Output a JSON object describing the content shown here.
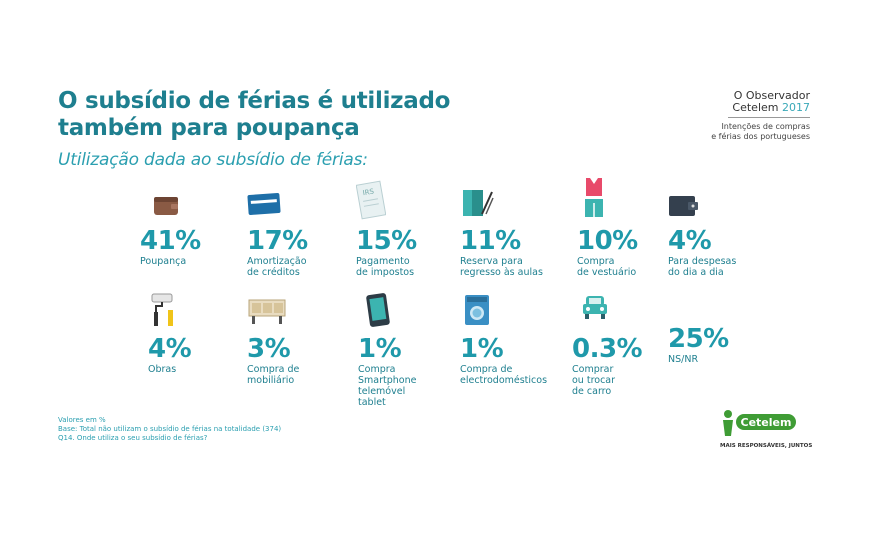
{
  "title_line1": "O subsídio de férias é utilizado",
  "title_line2": "também para poupança",
  "subtitle": "Utilização dada ao subsídio de férias:",
  "brand": {
    "line1": "O Observador",
    "line2": "Cetelem",
    "year": "2017",
    "sub1": "Intenções de compras",
    "sub2": "e férias dos portugueses"
  },
  "notes": {
    "n1": "Valores em %",
    "n2": "Base: Total não utilizam o subsídio de férias na totalidade (374)",
    "n3": "Q14. Onde utiliza o seu subsídio de férias?"
  },
  "logo": {
    "name": "Cetelem",
    "tagline": "MAIS RESPONSÁVEIS, JUNTOS"
  },
  "colors": {
    "accent": "#1f99aa",
    "title": "#1e7f8f",
    "logo_green": "#3f9c35"
  },
  "chart_data": {
    "type": "table",
    "title": "O subsídio de férias é utilizado também para poupança",
    "subtitle": "Utilização dada ao subsídio de férias:",
    "items": [
      {
        "value": "41%",
        "label": "Poupança",
        "icon": "wallet-icon"
      },
      {
        "value": "17%",
        "label": "Amortização\nde créditos",
        "icon": "credit-card-icon"
      },
      {
        "value": "15%",
        "label": "Pagamento\nde impostos",
        "icon": "tax-document-icon"
      },
      {
        "value": "11%",
        "label": "Reserva para\nregresso às aulas",
        "icon": "school-book-icon"
      },
      {
        "value": "10%",
        "label": "Compra\nde vestuário",
        "icon": "clothing-icon"
      },
      {
        "value": "4%",
        "label": "Para despesas\ndo dia a dia",
        "icon": "purse-icon"
      },
      {
        "value": "4%",
        "label": "Obras",
        "icon": "paint-roller-icon"
      },
      {
        "value": "3%",
        "label": "Compra de\nmobiliário",
        "icon": "furniture-icon"
      },
      {
        "value": "1%",
        "label": "Compra\nSmartphone\ntelemóvel\ntablet",
        "icon": "smartphone-icon"
      },
      {
        "value": "1%",
        "label": "Compra de\nelectrodomésticos",
        "icon": "washing-machine-icon"
      },
      {
        "value": "0.3%",
        "label": "Comprar\nou trocar\nde carro",
        "icon": "car-icon"
      },
      {
        "value": "25%",
        "label": "NS/NR",
        "icon": ""
      }
    ]
  }
}
